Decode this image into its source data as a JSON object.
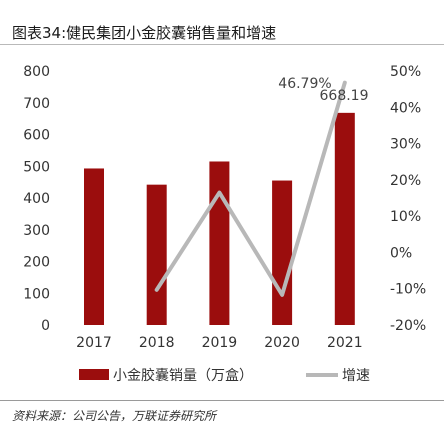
{
  "header": {
    "top_text": "图表34:健民集团小金胶囊销售量和增速"
  },
  "chart_data": {
    "type": "bar",
    "title": "图表34:健民集团小金胶囊销售量和增速",
    "categories": [
      "2017",
      "2018",
      "2019",
      "2020",
      "2021"
    ],
    "series": [
      {
        "name": "小金胶囊销量（万盒）",
        "type": "bar",
        "axis": "left",
        "color": "#9b0d0d",
        "values": [
          493,
          442,
          515,
          455,
          668.19
        ]
      },
      {
        "name": "增速",
        "type": "line",
        "axis": "right",
        "color": "#b8b8b8",
        "values": [
          null,
          -10.3,
          16.5,
          -11.7,
          46.79
        ]
      }
    ],
    "annotations": [
      {
        "series": 1,
        "index": 4,
        "text": "46.79%"
      },
      {
        "series": 0,
        "index": 4,
        "text": "668.19"
      }
    ],
    "y_left": {
      "lim": [
        0,
        800
      ],
      "ticks": [
        "0",
        "100",
        "200",
        "300",
        "400",
        "500",
        "600",
        "700",
        "800"
      ]
    },
    "y_right": {
      "lim": [
        -20,
        50
      ],
      "ticks": [
        "-20%",
        "-10%",
        "0%",
        "10%",
        "20%",
        "30%",
        "40%",
        "50%"
      ]
    },
    "legend": {
      "position": "bottom"
    },
    "grid": false
  },
  "footer": {
    "source": "资料来源：公司公告，万联证券研究所"
  }
}
